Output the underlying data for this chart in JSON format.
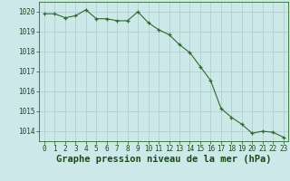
{
  "x": [
    0,
    1,
    2,
    3,
    4,
    5,
    6,
    7,
    8,
    9,
    10,
    11,
    12,
    13,
    14,
    15,
    16,
    17,
    18,
    19,
    20,
    21,
    22,
    23
  ],
  "y": [
    1019.9,
    1019.9,
    1019.7,
    1019.8,
    1020.1,
    1019.65,
    1019.65,
    1019.55,
    1019.55,
    1020.0,
    1019.45,
    1019.1,
    1018.85,
    1018.35,
    1017.95,
    1017.25,
    1016.55,
    1015.15,
    1014.7,
    1014.35,
    1013.9,
    1014.0,
    1013.95,
    1013.7
  ],
  "ylim": [
    1013.5,
    1020.5
  ],
  "xlim": [
    -0.5,
    23.5
  ],
  "yticks": [
    1014,
    1015,
    1016,
    1017,
    1018,
    1019,
    1020
  ],
  "xticks": [
    0,
    1,
    2,
    3,
    4,
    5,
    6,
    7,
    8,
    9,
    10,
    11,
    12,
    13,
    14,
    15,
    16,
    17,
    18,
    19,
    20,
    21,
    22,
    23
  ],
  "xlabel": "Graphe pression niveau de la mer (hPa)",
  "line_color": "#2d6a2d",
  "marker": "+",
  "bg_color": "#cce8e8",
  "grid_color": "#aacccc",
  "axis_color": "#2d6a2d",
  "label_color": "#1a4a1a",
  "tick_fontsize": 5.5,
  "xlabel_fontsize": 7.5
}
